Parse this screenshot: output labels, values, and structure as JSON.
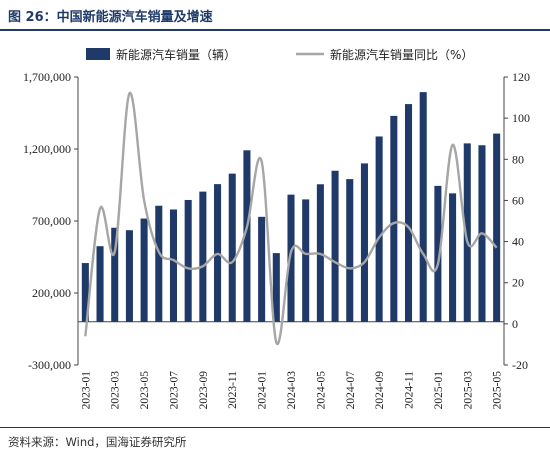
{
  "header": {
    "title": "图 26：中国新能源汽车销量及增速"
  },
  "footer": {
    "source": "资料来源：Wind，国海证券研究所"
  },
  "chart_data": {
    "type": "bar+line",
    "title": "图 26：中国新能源汽车销量及增速",
    "categories": [
      "2023-01",
      "2023-02",
      "2023-03",
      "2023-04",
      "2023-05",
      "2023-06",
      "2023-07",
      "2023-08",
      "2023-09",
      "2023-10",
      "2023-11",
      "2023-12",
      "2024-01",
      "2024-02",
      "2024-03",
      "2024-04",
      "2024-05",
      "2024-06",
      "2024-07",
      "2024-08",
      "2024-09",
      "2024-10",
      "2024-11",
      "2024-12",
      "2025-01",
      "2025-02",
      "2025-03",
      "2025-04",
      "2025-05"
    ],
    "x_tick_labels": [
      "2023-01",
      "2023-03",
      "2023-05",
      "2023-07",
      "2023-09",
      "2023-11",
      "2024-01",
      "2024-03",
      "2024-05",
      "2024-07",
      "2024-09",
      "2024-11",
      "2025-01",
      "2025-03",
      "2025-05"
    ],
    "series": [
      {
        "name": "新能源汽车销量（辆）",
        "axis": "left",
        "type": "bar",
        "color": "#1f3a68",
        "values": [
          408000,
          525000,
          653000,
          636000,
          717000,
          806000,
          780000,
          846000,
          904000,
          956000,
          1029000,
          1191000,
          729000,
          477000,
          883000,
          850000,
          955000,
          1049000,
          991000,
          1100000,
          1287000,
          1430000,
          1512000,
          1595000,
          944000,
          892000,
          1239000,
          1226000,
          1307000
        ]
      },
      {
        "name": "新能源汽车销量同比（%）",
        "axis": "right",
        "type": "line",
        "color": "#a6a6a6",
        "values": [
          -6,
          56,
          35,
          112,
          60,
          35,
          31,
          27,
          28,
          34,
          30,
          47,
          79,
          -9,
          35,
          34,
          34,
          30,
          27,
          30,
          42,
          49,
          47,
          34,
          29,
          87,
          40,
          44,
          37
        ]
      }
    ],
    "y_left": {
      "range": [
        -300000,
        1700000
      ],
      "ticks": [
        "-300,000",
        "200,000",
        "700,000",
        "1,200,000",
        "1,700,000"
      ]
    },
    "y_right": {
      "range": [
        -20,
        120
      ],
      "ticks": [
        "-20",
        "0",
        "20",
        "40",
        "60",
        "80",
        "100",
        "120"
      ]
    },
    "legend_position": "top",
    "grid": false
  }
}
